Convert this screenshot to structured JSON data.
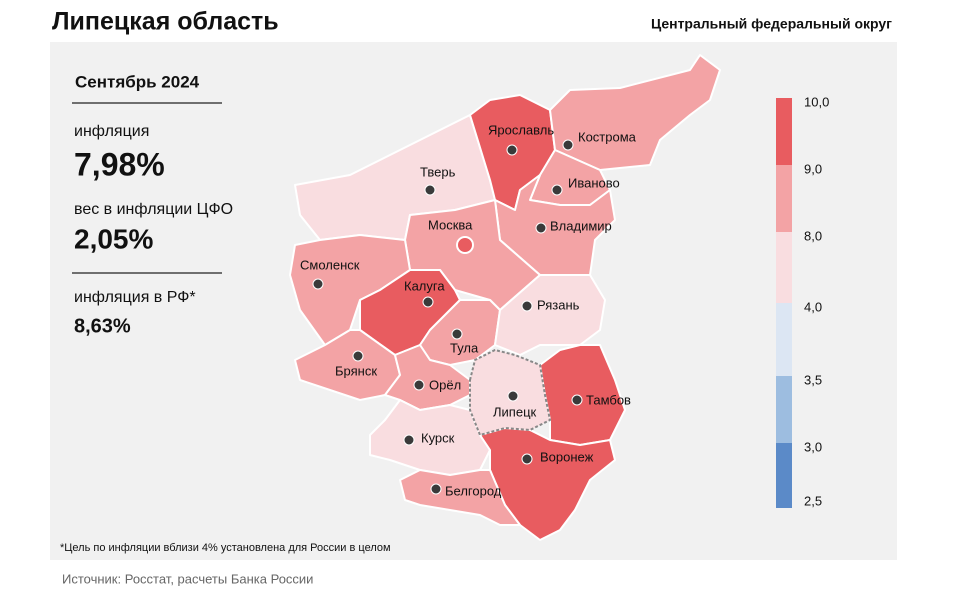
{
  "header": {
    "title": "Липецкая область",
    "district": "Центральный федеральный округ"
  },
  "panel": {
    "period": "Сентябрь 2024",
    "inflation_label": "инфляция",
    "inflation_value": "7,98%",
    "weight_label": "вес в инфляции ЦФО",
    "weight_value": "2,05%",
    "rf_label": "инфляция в РФ*",
    "rf_value": "8,63%"
  },
  "regions": [
    {
      "name": "Тверь",
      "color": "#f9dde0"
    },
    {
      "name": "Ярославль",
      "color": "#e85c60"
    },
    {
      "name": "Кострома",
      "color": "#f3a3a5"
    },
    {
      "name": "Иваново",
      "color": "#f3a3a5"
    },
    {
      "name": "Владимир",
      "color": "#f3a3a5"
    },
    {
      "name": "Москва",
      "color": "#f3a3a5"
    },
    {
      "name": "Смоленск",
      "color": "#f3a3a5"
    },
    {
      "name": "Калуга",
      "color": "#e85c60"
    },
    {
      "name": "Тула",
      "color": "#f3a3a5"
    },
    {
      "name": "Рязань",
      "color": "#f9dde0"
    },
    {
      "name": "Брянск",
      "color": "#f3a3a5"
    },
    {
      "name": "Орёл",
      "color": "#f3a3a5"
    },
    {
      "name": "Липецк",
      "color": "#f9dde0"
    },
    {
      "name": "Тамбов",
      "color": "#e85c60"
    },
    {
      "name": "Курск",
      "color": "#f9dde0"
    },
    {
      "name": "Воронеж",
      "color": "#e85c60"
    },
    {
      "name": "Белгород",
      "color": "#f3a3a5"
    }
  ],
  "legend": {
    "labels": [
      "10,0",
      "9,0",
      "8,0",
      "4,0",
      "3,5",
      "3,0",
      "2,5"
    ],
    "colors": [
      "#e85c60",
      "#f3a3a5",
      "#f9dde0",
      "#dce6f3",
      "#9dbde0",
      "#5b8ac8"
    ]
  },
  "footnote": "*Цель по инфляции вблизи 4% установлена для России в целом",
  "source": "Источник: Росстат, расчеты Банка России"
}
